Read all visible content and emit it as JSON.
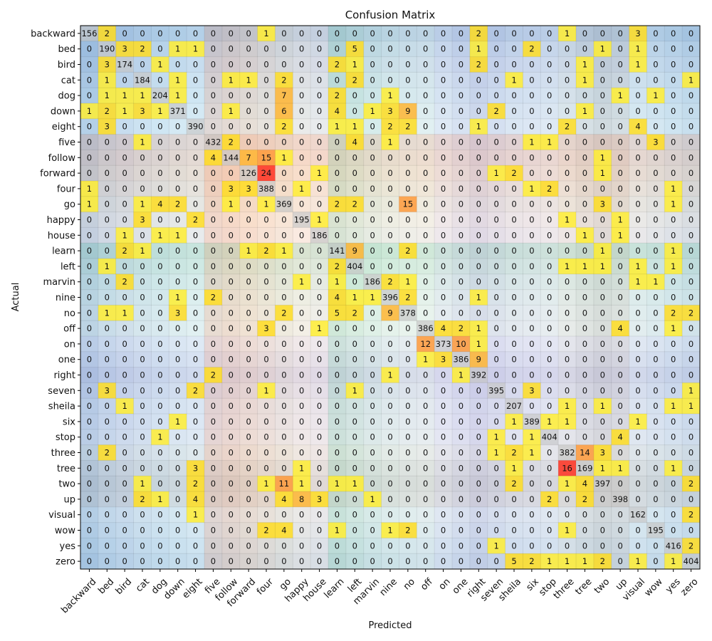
{
  "chart_data": {
    "type": "heatmap",
    "title": "Confusion Matrix",
    "xlabel": "Predicted",
    "ylabel": "Actual",
    "labels": [
      "backward",
      "bed",
      "bird",
      "cat",
      "dog",
      "down",
      "eight",
      "five",
      "follow",
      "forward",
      "four",
      "go",
      "happy",
      "house",
      "learn",
      "left",
      "marvin",
      "nine",
      "no",
      "off",
      "on",
      "one",
      "right",
      "seven",
      "sheila",
      "six",
      "stop",
      "three",
      "tree",
      "two",
      "up",
      "visual",
      "wow",
      "yes",
      "zero"
    ],
    "matrix": [
      [
        156,
        2,
        0,
        0,
        0,
        0,
        0,
        0,
        0,
        0,
        1,
        0,
        0,
        0,
        0,
        0,
        0,
        0,
        0,
        0,
        0,
        0,
        2,
        0,
        0,
        0,
        0,
        1,
        0,
        0,
        0,
        3,
        0,
        0,
        0
      ],
      [
        0,
        190,
        3,
        2,
        0,
        1,
        1,
        0,
        0,
        0,
        0,
        0,
        0,
        0,
        0,
        5,
        0,
        0,
        0,
        0,
        0,
        0,
        1,
        0,
        0,
        2,
        0,
        0,
        0,
        1,
        0,
        1,
        0,
        0,
        0
      ],
      [
        0,
        3,
        174,
        0,
        1,
        0,
        0,
        0,
        0,
        0,
        0,
        0,
        0,
        0,
        2,
        1,
        0,
        0,
        0,
        0,
        0,
        0,
        2,
        0,
        0,
        0,
        0,
        0,
        1,
        0,
        0,
        1,
        0,
        0,
        0
      ],
      [
        0,
        1,
        0,
        184,
        0,
        1,
        0,
        0,
        1,
        1,
        0,
        2,
        0,
        0,
        0,
        2,
        0,
        0,
        0,
        0,
        0,
        0,
        0,
        0,
        1,
        0,
        0,
        0,
        1,
        0,
        0,
        0,
        0,
        0,
        1
      ],
      [
        0,
        1,
        1,
        1,
        204,
        1,
        0,
        0,
        0,
        0,
        0,
        7,
        0,
        0,
        2,
        0,
        0,
        1,
        0,
        0,
        0,
        0,
        0,
        0,
        0,
        0,
        0,
        0,
        0,
        0,
        1,
        0,
        1,
        0,
        0
      ],
      [
        1,
        2,
        1,
        3,
        1,
        371,
        0,
        0,
        1,
        0,
        0,
        6,
        0,
        0,
        4,
        0,
        1,
        3,
        9,
        0,
        0,
        0,
        0,
        2,
        0,
        0,
        0,
        0,
        1,
        0,
        0,
        0,
        0,
        0,
        0
      ],
      [
        0,
        3,
        0,
        0,
        0,
        0,
        390,
        0,
        0,
        0,
        0,
        2,
        0,
        0,
        1,
        1,
        0,
        2,
        2,
        0,
        0,
        0,
        1,
        0,
        0,
        0,
        0,
        2,
        0,
        0,
        0,
        4,
        0,
        0,
        0
      ],
      [
        0,
        0,
        0,
        1,
        0,
        0,
        0,
        432,
        2,
        0,
        0,
        0,
        0,
        0,
        0,
        4,
        0,
        1,
        0,
        0,
        0,
        0,
        0,
        0,
        0,
        1,
        1,
        0,
        0,
        0,
        0,
        0,
        3,
        0,
        0
      ],
      [
        0,
        0,
        0,
        0,
        0,
        0,
        0,
        4,
        144,
        7,
        15,
        1,
        0,
        0,
        0,
        0,
        0,
        0,
        0,
        0,
        0,
        0,
        0,
        0,
        0,
        0,
        0,
        0,
        0,
        1,
        0,
        0,
        0,
        0,
        0
      ],
      [
        0,
        0,
        0,
        0,
        0,
        0,
        0,
        0,
        0,
        126,
        24,
        0,
        0,
        1,
        0,
        0,
        0,
        0,
        0,
        0,
        0,
        0,
        0,
        1,
        2,
        0,
        0,
        0,
        0,
        1,
        0,
        0,
        0,
        0,
        0
      ],
      [
        1,
        0,
        0,
        0,
        0,
        0,
        0,
        0,
        3,
        3,
        388,
        0,
        1,
        0,
        0,
        0,
        0,
        0,
        0,
        0,
        0,
        0,
        0,
        0,
        0,
        1,
        2,
        0,
        0,
        0,
        0,
        0,
        0,
        1,
        0
      ],
      [
        1,
        0,
        0,
        1,
        4,
        2,
        0,
        0,
        1,
        0,
        1,
        369,
        0,
        0,
        2,
        2,
        0,
        0,
        15,
        0,
        0,
        0,
        0,
        0,
        0,
        0,
        0,
        0,
        0,
        3,
        0,
        0,
        0,
        1,
        0
      ],
      [
        0,
        0,
        0,
        3,
        0,
        0,
        2,
        0,
        0,
        0,
        0,
        0,
        195,
        1,
        0,
        0,
        0,
        0,
        0,
        0,
        0,
        0,
        0,
        0,
        0,
        0,
        0,
        1,
        0,
        0,
        1,
        0,
        0,
        0,
        0
      ],
      [
        0,
        0,
        1,
        0,
        1,
        1,
        0,
        0,
        0,
        0,
        0,
        0,
        0,
        186,
        0,
        0,
        0,
        0,
        0,
        0,
        0,
        0,
        0,
        0,
        0,
        0,
        0,
        0,
        1,
        0,
        1,
        0,
        0,
        0,
        0
      ],
      [
        0,
        0,
        2,
        1,
        0,
        0,
        0,
        0,
        0,
        1,
        2,
        1,
        0,
        0,
        141,
        9,
        0,
        0,
        2,
        0,
        0,
        0,
        0,
        0,
        0,
        0,
        0,
        0,
        0,
        1,
        0,
        0,
        0,
        1,
        0
      ],
      [
        0,
        1,
        0,
        0,
        0,
        0,
        0,
        0,
        0,
        0,
        0,
        0,
        0,
        0,
        2,
        404,
        0,
        0,
        0,
        0,
        0,
        0,
        0,
        0,
        0,
        0,
        0,
        1,
        1,
        1,
        0,
        1,
        0,
        1,
        0
      ],
      [
        0,
        0,
        2,
        0,
        0,
        0,
        0,
        0,
        0,
        0,
        0,
        0,
        1,
        0,
        1,
        0,
        186,
        2,
        1,
        0,
        0,
        0,
        0,
        0,
        0,
        0,
        0,
        0,
        0,
        0,
        0,
        1,
        1,
        0,
        0
      ],
      [
        0,
        0,
        0,
        0,
        0,
        1,
        0,
        2,
        0,
        0,
        0,
        0,
        0,
        0,
        4,
        1,
        1,
        396,
        2,
        0,
        0,
        0,
        1,
        0,
        0,
        0,
        0,
        0,
        0,
        0,
        0,
        0,
        0,
        0,
        0
      ],
      [
        0,
        1,
        1,
        0,
        0,
        3,
        0,
        0,
        0,
        0,
        0,
        2,
        0,
        0,
        5,
        2,
        0,
        9,
        378,
        0,
        0,
        0,
        0,
        0,
        0,
        0,
        0,
        0,
        0,
        0,
        0,
        0,
        0,
        2,
        2
      ],
      [
        0,
        0,
        0,
        0,
        0,
        0,
        0,
        0,
        0,
        0,
        3,
        0,
        0,
        1,
        0,
        0,
        0,
        0,
        0,
        386,
        4,
        2,
        1,
        0,
        0,
        0,
        0,
        0,
        0,
        0,
        4,
        0,
        0,
        1,
        0
      ],
      [
        0,
        0,
        0,
        0,
        0,
        0,
        0,
        0,
        0,
        0,
        0,
        0,
        0,
        0,
        0,
        0,
        0,
        0,
        0,
        12,
        373,
        10,
        1,
        0,
        0,
        0,
        0,
        0,
        0,
        0,
        0,
        0,
        0,
        0,
        0
      ],
      [
        0,
        0,
        0,
        0,
        0,
        0,
        0,
        0,
        0,
        0,
        0,
        0,
        0,
        0,
        0,
        0,
        0,
        0,
        0,
        1,
        3,
        386,
        9,
        0,
        0,
        0,
        0,
        0,
        0,
        0,
        0,
        0,
        0,
        0,
        0
      ],
      [
        0,
        0,
        0,
        0,
        0,
        0,
        0,
        2,
        0,
        0,
        0,
        0,
        0,
        0,
        0,
        0,
        0,
        1,
        0,
        0,
        0,
        1,
        392,
        0,
        0,
        0,
        0,
        0,
        0,
        0,
        0,
        0,
        0,
        0,
        0
      ],
      [
        0,
        3,
        0,
        0,
        0,
        0,
        2,
        0,
        0,
        0,
        1,
        0,
        0,
        0,
        0,
        1,
        0,
        0,
        0,
        0,
        0,
        0,
        0,
        395,
        0,
        3,
        0,
        0,
        0,
        0,
        0,
        0,
        0,
        0,
        1
      ],
      [
        0,
        0,
        1,
        0,
        0,
        0,
        0,
        0,
        0,
        0,
        0,
        0,
        0,
        0,
        0,
        0,
        0,
        0,
        0,
        0,
        0,
        0,
        0,
        0,
        207,
        0,
        0,
        1,
        0,
        1,
        0,
        0,
        0,
        1,
        1
      ],
      [
        0,
        0,
        0,
        0,
        0,
        1,
        0,
        0,
        0,
        0,
        0,
        0,
        0,
        0,
        0,
        0,
        0,
        0,
        0,
        0,
        0,
        0,
        0,
        0,
        1,
        389,
        1,
        1,
        0,
        0,
        0,
        1,
        0,
        0,
        0
      ],
      [
        0,
        0,
        0,
        0,
        1,
        0,
        0,
        0,
        0,
        0,
        0,
        0,
        0,
        0,
        0,
        0,
        0,
        0,
        0,
        0,
        0,
        0,
        0,
        1,
        0,
        1,
        404,
        0,
        0,
        0,
        4,
        0,
        0,
        0,
        0
      ],
      [
        0,
        2,
        0,
        0,
        0,
        0,
        0,
        0,
        0,
        0,
        0,
        0,
        0,
        0,
        0,
        0,
        0,
        0,
        0,
        0,
        0,
        0,
        0,
        1,
        2,
        1,
        0,
        382,
        14,
        3,
        0,
        0,
        0,
        0,
        0
      ],
      [
        0,
        0,
        0,
        0,
        0,
        0,
        3,
        0,
        0,
        0,
        0,
        0,
        1,
        0,
        0,
        0,
        0,
        0,
        0,
        0,
        0,
        0,
        0,
        0,
        1,
        0,
        0,
        16,
        169,
        1,
        1,
        0,
        0,
        1,
        0
      ],
      [
        0,
        0,
        0,
        1,
        0,
        0,
        2,
        0,
        0,
        0,
        1,
        11,
        1,
        0,
        1,
        1,
        0,
        0,
        0,
        0,
        0,
        0,
        0,
        0,
        2,
        0,
        0,
        1,
        4,
        397,
        0,
        0,
        0,
        0,
        2
      ],
      [
        0,
        0,
        0,
        2,
        1,
        0,
        4,
        0,
        0,
        0,
        0,
        4,
        8,
        3,
        0,
        0,
        1,
        0,
        0,
        0,
        0,
        0,
        0,
        0,
        0,
        0,
        2,
        0,
        2,
        0,
        398,
        0,
        0,
        0,
        0
      ],
      [
        0,
        0,
        0,
        0,
        0,
        0,
        1,
        0,
        0,
        0,
        0,
        0,
        0,
        0,
        0,
        0,
        0,
        0,
        0,
        0,
        0,
        0,
        0,
        0,
        0,
        0,
        0,
        0,
        0,
        0,
        0,
        162,
        0,
        0,
        2
      ],
      [
        0,
        0,
        0,
        0,
        0,
        0,
        0,
        0,
        0,
        0,
        2,
        4,
        0,
        0,
        1,
        0,
        0,
        1,
        2,
        0,
        0,
        0,
        0,
        0,
        0,
        0,
        0,
        1,
        0,
        0,
        0,
        0,
        195,
        0,
        0
      ],
      [
        0,
        0,
        0,
        0,
        0,
        0,
        0,
        0,
        0,
        0,
        0,
        0,
        0,
        0,
        0,
        0,
        0,
        0,
        0,
        0,
        0,
        0,
        0,
        1,
        0,
        0,
        0,
        0,
        0,
        0,
        0,
        0,
        0,
        416,
        2
      ],
      [
        0,
        0,
        0,
        0,
        0,
        0,
        0,
        0,
        0,
        0,
        0,
        0,
        0,
        0,
        0,
        0,
        0,
        0,
        0,
        0,
        0,
        0,
        0,
        0,
        5,
        2,
        1,
        1,
        1,
        2,
        0,
        1,
        0,
        1,
        404
      ]
    ],
    "grid": true,
    "colorbar": false,
    "colors": {
      "diagonal": "#c8c8c8",
      "count_1": "#ffee33",
      "count_2_5": "#ffdd22",
      "count_6_9": "#ffb633",
      "count_10_15": "#ff9a3a",
      "count_high": "#ff3020",
      "stripe_palette": [
        "#8fb4d9",
        "#a8c6e4",
        "#b5cde8",
        "#c0d8ec",
        "#c6dff0",
        "#cfe6f2",
        "#d8ecf6",
        "#e6c4b5",
        "#f0c7b2",
        "#f5d1b8",
        "#f6dac4",
        "#f4e2cf",
        "#fbeade",
        "#f8e9e4",
        "#b6dcc4",
        "#c6e6d2",
        "#d4ece0",
        "#e0f1e8",
        "#e6f2ec",
        "#eaf3ee",
        "#e4e6f4",
        "#d6d8ee",
        "#c8c8e6",
        "#d2d4ec",
        "#dcdff0",
        "#e0e2f2",
        "#e4e6f2",
        "#e3e3e3",
        "#d4d4d4",
        "#c8c8c8",
        "#cfcfcf",
        "#d9e7f0",
        "#cfe2ee",
        "#c4dbeb",
        "#b8d2e6"
      ]
    }
  }
}
